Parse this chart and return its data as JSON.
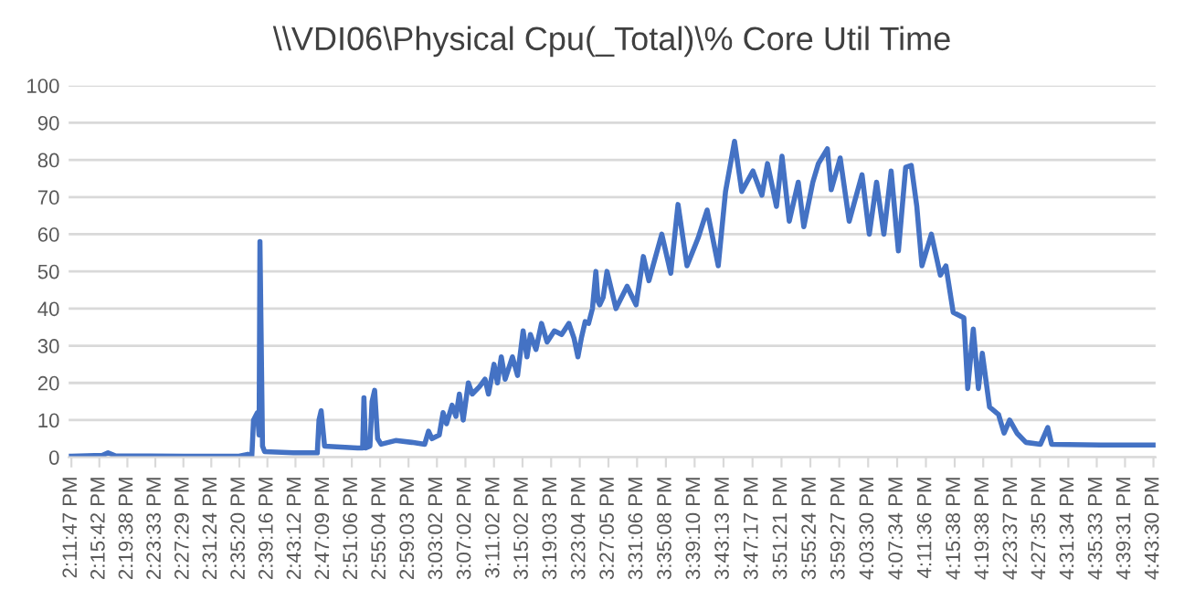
{
  "chart_data": {
    "type": "line",
    "title": "\\\\VDI06\\Physical Cpu(_Total)\\% Core Util Time",
    "x": [
      14.196,
      14.269,
      14.282,
      14.299,
      14.46,
      14.588,
      14.609,
      14.618,
      14.622,
      14.631,
      14.635,
      14.637,
      14.643,
      14.648,
      14.716,
      14.771,
      14.775,
      14.78,
      14.788,
      14.865,
      14.877,
      14.88,
      14.884,
      14.894,
      14.899,
      14.905,
      14.912,
      14.92,
      14.954,
      14.992,
      15.022,
      15.031,
      15.039,
      15.056,
      15.065,
      15.073,
      15.086,
      15.095,
      15.103,
      15.112,
      15.124,
      15.133,
      15.15,
      15.163,
      15.171,
      15.184,
      15.192,
      15.201,
      15.21,
      15.227,
      15.239,
      15.252,
      15.261,
      15.269,
      15.282,
      15.295,
      15.308,
      15.325,
      15.342,
      15.359,
      15.371,
      15.38,
      15.388,
      15.397,
      15.405,
      15.414,
      15.422,
      15.427,
      15.431,
      15.439,
      15.448,
      15.469,
      15.495,
      15.516,
      15.533,
      15.546,
      15.576,
      15.597,
      15.614,
      15.635,
      15.661,
      15.682,
      15.708,
      15.725,
      15.746,
      15.763,
      15.789,
      15.81,
      15.823,
      15.844,
      15.857,
      15.874,
      15.895,
      15.908,
      15.929,
      15.942,
      15.963,
      15.972,
      15.993,
      16.014,
      16.044,
      16.061,
      16.078,
      16.095,
      16.112,
      16.129,
      16.146,
      16.159,
      16.172,
      16.184,
      16.206,
      16.227,
      16.24,
      16.257,
      16.282,
      16.291,
      16.304,
      16.316,
      16.325,
      16.342,
      16.363,
      16.376,
      16.389,
      16.406,
      16.427,
      16.461,
      16.478,
      16.487,
      16.602,
      16.725
    ],
    "series": [
      {
        "color": "#4472c4",
        "values": [
          0.3,
          0.5,
          1.2,
          0.4,
          0.3,
          0.3,
          0.8,
          0.3,
          10,
          12,
          6,
          58,
          3,
          1.5,
          1.2,
          1.2,
          10,
          12.5,
          3,
          2.5,
          2.5,
          16,
          2.5,
          3,
          15,
          18,
          5,
          3.5,
          4.5,
          4,
          3.5,
          7,
          5,
          6,
          12,
          9,
          14,
          11,
          17,
          10,
          20,
          17,
          19,
          21,
          17,
          25,
          20,
          27,
          21,
          27,
          22,
          34,
          27,
          33,
          29,
          36,
          31,
          34,
          33,
          36,
          32,
          27,
          32,
          36.5,
          36,
          40,
          50,
          42,
          41,
          43,
          50,
          40,
          46,
          41,
          54,
          47.5,
          60,
          49.5,
          68,
          51.5,
          59,
          66.5,
          51.5,
          71.5,
          85,
          71.5,
          77,
          70.5,
          79,
          67.5,
          81,
          63.5,
          74,
          62,
          74,
          79,
          83,
          72,
          80.5,
          63.5,
          76,
          60,
          74,
          60,
          77,
          55.5,
          78,
          78.5,
          67.5,
          51.5,
          60,
          49,
          51.5,
          39,
          37.5,
          18.5,
          34.5,
          18.5,
          28,
          13.5,
          11.5,
          6.5,
          10,
          6.5,
          4,
          3.5,
          8,
          3.5,
          3.3,
          3.3
        ]
      }
    ],
    "xlim": [
      14.19,
      16.73
    ],
    "xticks": [
      {
        "value": 14.1964,
        "label": "2:11:47 PM"
      },
      {
        "value": 14.2617,
        "label": "2:15:42 PM"
      },
      {
        "value": 14.3272,
        "label": "2:19:38 PM"
      },
      {
        "value": 14.3925,
        "label": "2:23:33 PM"
      },
      {
        "value": 14.4581,
        "label": "2:27:29 PM"
      },
      {
        "value": 14.5233,
        "label": "2:31:24 PM"
      },
      {
        "value": 14.5889,
        "label": "2:35:20 PM"
      },
      {
        "value": 14.6544,
        "label": "2:39:16 PM"
      },
      {
        "value": 14.72,
        "label": "2:43:12 PM"
      },
      {
        "value": 14.7858,
        "label": "2:47:09 PM"
      },
      {
        "value": 14.8517,
        "label": "2:51:06 PM"
      },
      {
        "value": 14.9178,
        "label": "2:55:04 PM"
      },
      {
        "value": 14.9842,
        "label": "2:59:03 PM"
      },
      {
        "value": 15.0506,
        "label": "3:03:02 PM"
      },
      {
        "value": 15.1172,
        "label": "3:07:02 PM"
      },
      {
        "value": 15.1839,
        "label": "3:11:02 PM"
      },
      {
        "value": 15.2506,
        "label": "3:15:02 PM"
      },
      {
        "value": 15.3175,
        "label": "3:19:03 PM"
      },
      {
        "value": 15.3844,
        "label": "3:23:04 PM"
      },
      {
        "value": 15.4514,
        "label": "3:27:05 PM"
      },
      {
        "value": 15.5183,
        "label": "3:31:06 PM"
      },
      {
        "value": 15.5856,
        "label": "3:35:08 PM"
      },
      {
        "value": 15.6528,
        "label": "3:39:10 PM"
      },
      {
        "value": 15.7203,
        "label": "3:43:13 PM"
      },
      {
        "value": 15.7881,
        "label": "3:47:17 PM"
      },
      {
        "value": 15.8558,
        "label": "3:51:21 PM"
      },
      {
        "value": 15.9233,
        "label": "3:55:24 PM"
      },
      {
        "value": 15.9908,
        "label": "3:59:27 PM"
      },
      {
        "value": 16.0583,
        "label": "4:03:30 PM"
      },
      {
        "value": 16.1261,
        "label": "4:07:34 PM"
      },
      {
        "value": 16.1933,
        "label": "4:11:36 PM"
      },
      {
        "value": 16.2606,
        "label": "4:15:38 PM"
      },
      {
        "value": 16.3272,
        "label": "4:19:38 PM"
      },
      {
        "value": 16.3936,
        "label": "4:23:37 PM"
      },
      {
        "value": 16.4597,
        "label": "4:27:35 PM"
      },
      {
        "value": 16.5261,
        "label": "4:31:34 PM"
      },
      {
        "value": 16.5925,
        "label": "4:35:33 PM"
      },
      {
        "value": 16.6586,
        "label": "4:39:31 PM"
      },
      {
        "value": 16.725,
        "label": "4:43:30 PM"
      }
    ],
    "ylim": [
      0,
      100
    ],
    "yticks": [
      0,
      10,
      20,
      30,
      40,
      50,
      60,
      70,
      80,
      90,
      100
    ],
    "grid": "y",
    "marker": "none",
    "line_style": "solid"
  }
}
